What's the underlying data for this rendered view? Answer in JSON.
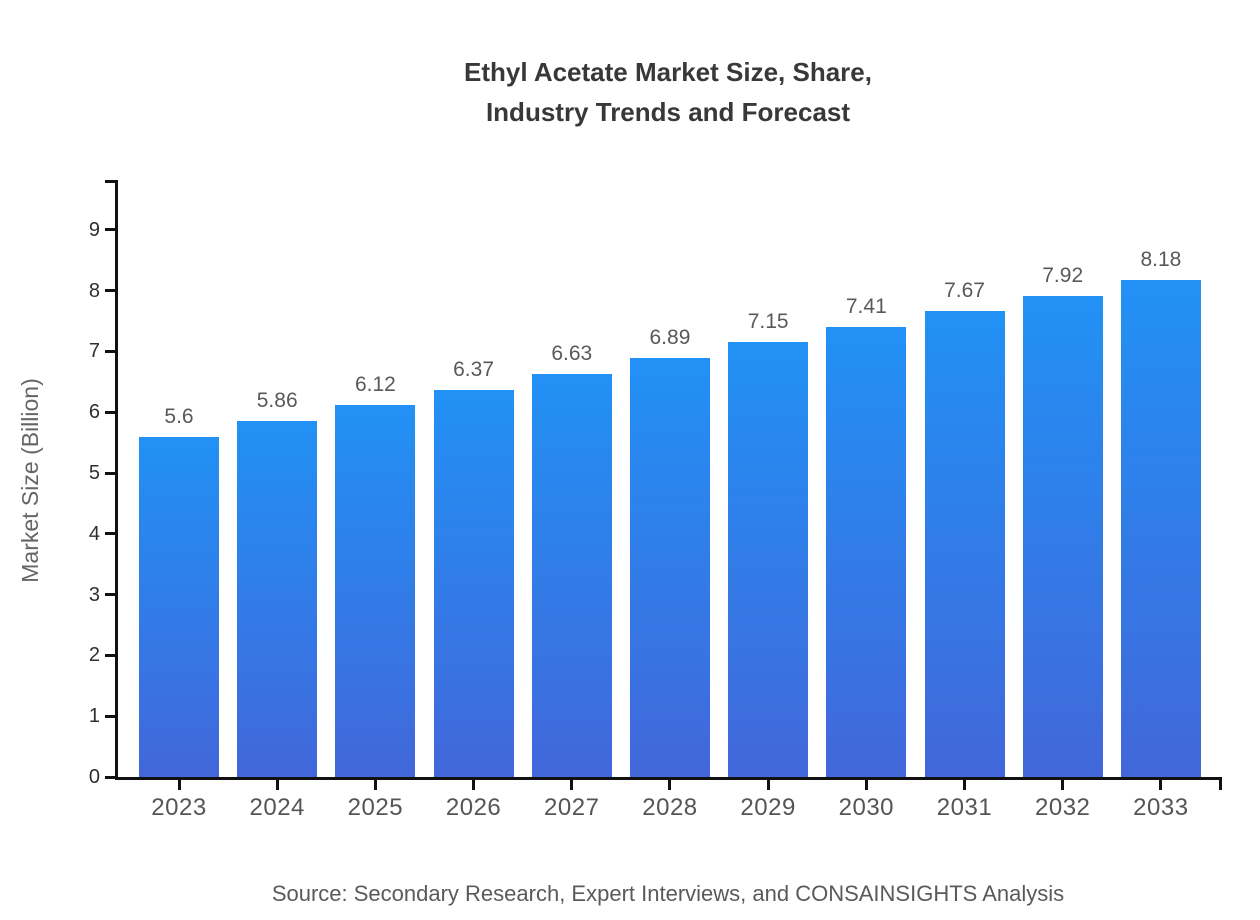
{
  "chart_data": {
    "type": "bar",
    "title": "Ethyl Acetate Market Size, Share, Industry Trends and Forecast",
    "title_lines": [
      "Ethyl Acetate Market Size, Share,",
      "Industry Trends and Forecast"
    ],
    "xlabel": "",
    "ylabel": "Market Size (Billion)",
    "categories": [
      "2023",
      "2024",
      "2025",
      "2026",
      "2027",
      "2028",
      "2029",
      "2030",
      "2031",
      "2032",
      "2033"
    ],
    "values": [
      5.6,
      5.86,
      6.12,
      6.37,
      6.63,
      6.89,
      7.15,
      7.41,
      7.67,
      7.92,
      8.18
    ],
    "value_labels": [
      "5.6",
      "5.86",
      "6.12",
      "6.37",
      "6.63",
      "6.89",
      "7.15",
      "7.41",
      "7.67",
      "7.92",
      "8.18"
    ],
    "yticks": [
      0,
      1,
      2,
      3,
      4,
      5,
      6,
      7,
      8,
      9
    ],
    "ylim": [
      0,
      9.82
    ],
    "grid": false,
    "legend": "none",
    "colors": {
      "bar_gradient_top": "#2191F5",
      "bar_gradient_bottom": "#4267DA",
      "axis": "#111111",
      "title_text": "#383838",
      "ytick_text": "#2F2F2F",
      "xtick_text": "#555555",
      "value_label_text": "#595959",
      "axis_title_text": "#666666",
      "source_text": "#5A5A5A",
      "background": "#FFFFFF"
    }
  },
  "source": {
    "text": "Source: Secondary Research, Expert Interviews, and CONSAINSIGHTS Analysis"
  }
}
